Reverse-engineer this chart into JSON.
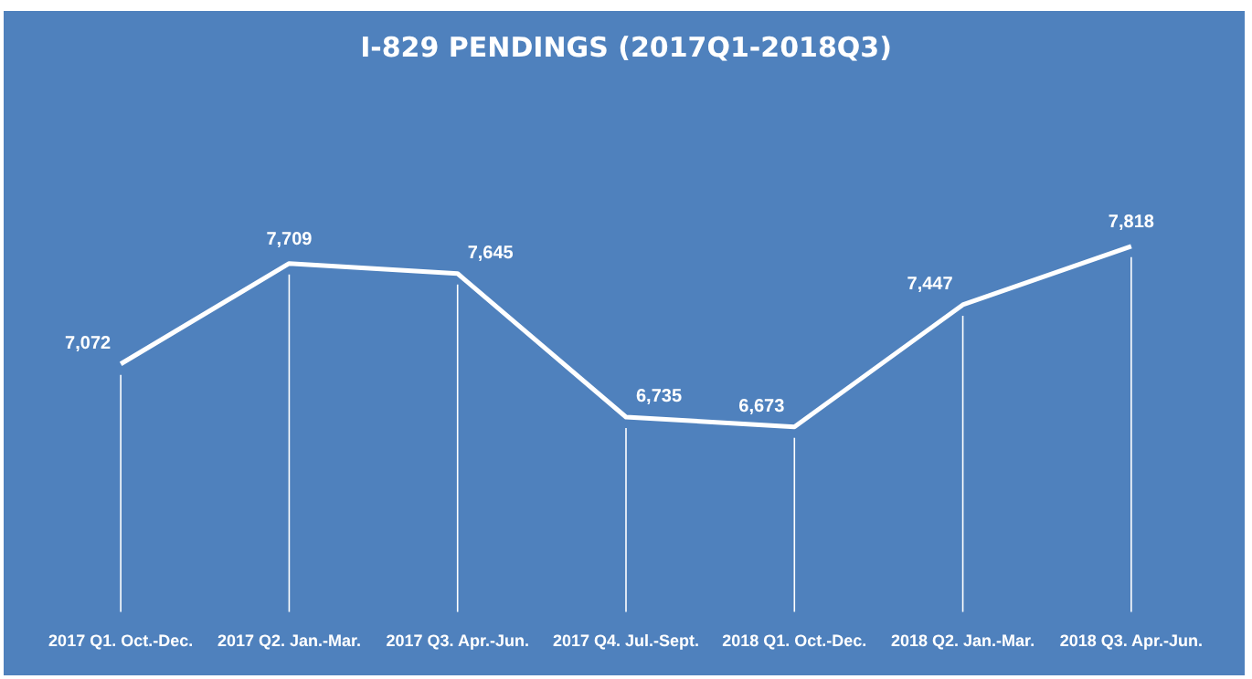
{
  "chart_data": {
    "type": "line",
    "title": "I-829 PENDINGS (2017Q1-2018Q3)",
    "categories": [
      "2017 Q1. Oct.-Dec.",
      "2017 Q2. Jan.-Mar.",
      "2017 Q3. Apr.-Jun.",
      "2017 Q4. Jul.-Sept.",
      "2018 Q1. Oct.-Dec.",
      "2018 Q2. Jan.-Mar.",
      "2018 Q3. Apr.-Jun."
    ],
    "values": [
      7072,
      7709,
      7645,
      6735,
      6673,
      7447,
      7818
    ],
    "color": "#ffffff",
    "value_labels": [
      "7,072",
      "7,709",
      "7,645",
      "6,735",
      "6,673",
      "7,447",
      "7,818"
    ],
    "tick_labels": "x",
    "grid": "x",
    "legend": false,
    "marker": "none"
  }
}
